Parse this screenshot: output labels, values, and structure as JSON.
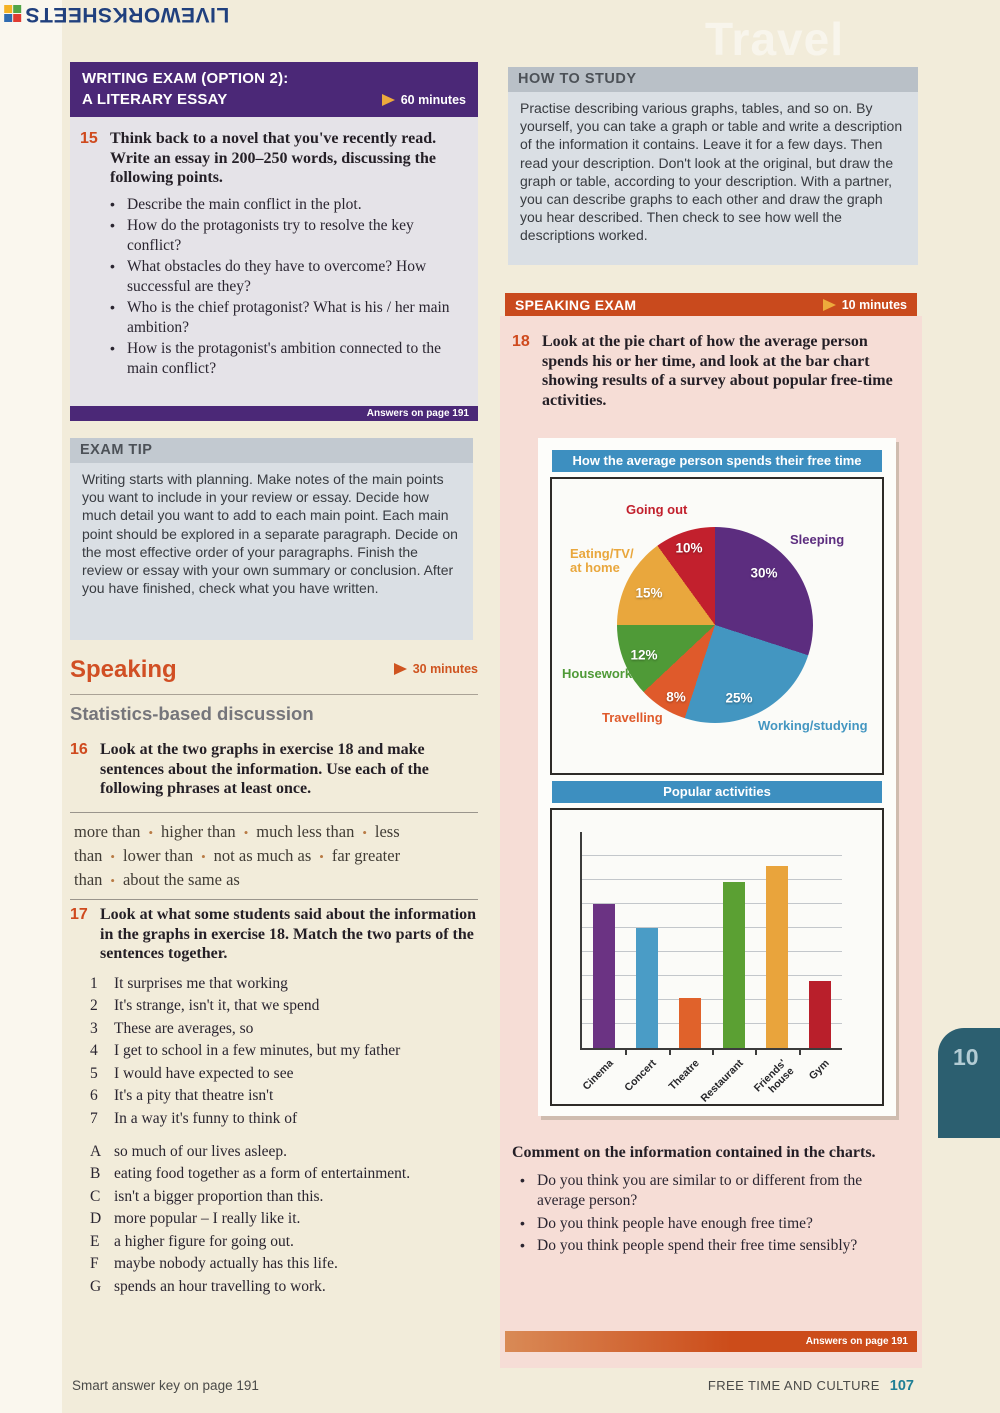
{
  "watermark": {
    "text": "LIVEWORKSHEETS"
  },
  "ghost_title": "Travel",
  "colors": {
    "header_purple": "#4b2877",
    "band_orange": "#c94a1d",
    "chart_teal": "#3d8fc0",
    "tab_teal": "#2c5f70",
    "pink_background": "#f6ddd6",
    "arrow_gold": "#edaa3c",
    "exercise_number_orange": "#cf4a1e"
  },
  "left": {
    "writing_exam": {
      "title_line1": "WRITING EXAM (OPTION 2):",
      "title_line2": "A LITERARY ESSAY",
      "duration": "60 minutes",
      "exercise": {
        "number": "15",
        "text": "Think back to a novel that you've recently read. Write an essay in 200–250 words, discussing the following points.",
        "bullets": [
          "Describe the main conflict in the plot.",
          "How do the protagonists try to resolve the key conflict?",
          "What obstacles do they have to overcome? How successful are they?",
          "Who is the chief protagonist? What is his / her main ambition?",
          "How is the protagonist's ambition connected to the main conflict?"
        ]
      },
      "answers_note": "Answers on page 191"
    },
    "exam_tip": {
      "title": "EXAM TIP",
      "body": "Writing starts with planning. Make notes of the main points you want to include in your review or essay. Decide how much detail you want to add to each main point. Each main point should be explored in a separate paragraph. Decide on the most effective order of your paragraphs. Finish the review or essay with your own summary or conclusion. After you have finished, check what you have written."
    },
    "speaking": {
      "title": "Speaking",
      "duration": "30 minutes",
      "subtitle": "Statistics-based discussion",
      "ex16": {
        "number": "16",
        "text": "Look at the two graphs in exercise 18 and make sentences about the information. Use each of the following phrases at least once.",
        "phrases": [
          "more than",
          "higher than",
          "much less than",
          "less than",
          "lower than",
          "not as much as",
          "far greater than",
          "about the same as"
        ]
      },
      "ex17": {
        "number": "17",
        "text": "Look at what some students said about the information in the graphs in exercise 18. Match the two parts of the sentences together.",
        "numbered": [
          {
            "k": "1",
            "t": "It surprises me that working"
          },
          {
            "k": "2",
            "t": "It's strange, isn't it, that we spend"
          },
          {
            "k": "3",
            "t": "These are averages, so"
          },
          {
            "k": "4",
            "t": "I get to school in a few minutes, but my father"
          },
          {
            "k": "5",
            "t": "I would have expected to see"
          },
          {
            "k": "6",
            "t": "It's a pity that theatre isn't"
          },
          {
            "k": "7",
            "t": "In a way it's funny to think of"
          }
        ],
        "lettered": [
          {
            "k": "A",
            "t": "so much of our lives asleep."
          },
          {
            "k": "B",
            "t": "eating food together as a form of entertainment."
          },
          {
            "k": "C",
            "t": "isn't a bigger proportion than this."
          },
          {
            "k": "D",
            "t": "more popular – I really like it."
          },
          {
            "k": "E",
            "t": "a higher figure for going out."
          },
          {
            "k": "F",
            "t": "maybe nobody actually has this life."
          },
          {
            "k": "G",
            "t": "spends an hour travelling to work."
          }
        ]
      }
    }
  },
  "right": {
    "how_to_study": {
      "title": "HOW TO STUDY",
      "body": "Practise describing various graphs, tables, and so on. By yourself, you can take a graph or table and write a description of the information it contains. Leave it for a few days. Then read your description. Don't look at the original, but draw the graph or table, according to your description. With a partner, you can describe graphs to each other and draw the graph you hear described. Then check to see how well the descriptions worked."
    },
    "speaking_exam": {
      "title": "SPEAKING EXAM",
      "duration": "10 minutes"
    },
    "ex18": {
      "number": "18",
      "text": "Look at the pie chart of how the average person spends his or her time, and look at the bar chart showing results of a survey about popular free-time activities."
    },
    "comment": {
      "text": "Comment on the information contained in the charts.",
      "bullets": [
        "Do you think you are similar to or different from the average person?",
        "Do you think people have enough free time?",
        "Do you think people spend their free time sensibly?"
      ]
    },
    "answers_note": "Answers on page 191"
  },
  "footer": {
    "left": "Smart answer key on page 191",
    "section": "FREE TIME AND CULTURE",
    "page_number": "107",
    "unit_tab": "10"
  },
  "chart_data": [
    {
      "type": "pie",
      "title": "How the average person spends their free time",
      "start_angle_deg": 0,
      "direction": "clockwise",
      "slices": [
        {
          "label": "Sleeping",
          "value": 30,
          "pct": "30%",
          "color": "#5c2d7f"
        },
        {
          "label": "Working/studying",
          "value": 25,
          "pct": "25%",
          "color": "#4396c1"
        },
        {
          "label": "Travelling",
          "value": 8,
          "pct": "8%",
          "color": "#df5a2b"
        },
        {
          "label": "Housework",
          "value": 12,
          "pct": "12%",
          "color": "#4f9a37"
        },
        {
          "label": "Eating/TV/\nat home",
          "value": 15,
          "pct": "15%",
          "color": "#e9a73d"
        },
        {
          "label": "Going out",
          "value": 10,
          "pct": "10%",
          "color": "#c2202d"
        }
      ]
    },
    {
      "type": "bar",
      "title": "Popular activities",
      "categories": [
        "Cinema",
        "Concert",
        "Theatre",
        "Restaurant",
        "Friends'\nhouse",
        "Gym"
      ],
      "values": [
        6,
        5,
        2.1,
        6.9,
        7.6,
        2.8
      ],
      "colors": [
        "#6b3383",
        "#4a9cc6",
        "#e0622b",
        "#5ba033",
        "#e9a43c",
        "#b91f2b"
      ],
      "ylim": [
        0,
        9
      ],
      "gridlines": 9,
      "y_tick_labels": "none shown",
      "xlabel": "",
      "ylabel": ""
    }
  ]
}
